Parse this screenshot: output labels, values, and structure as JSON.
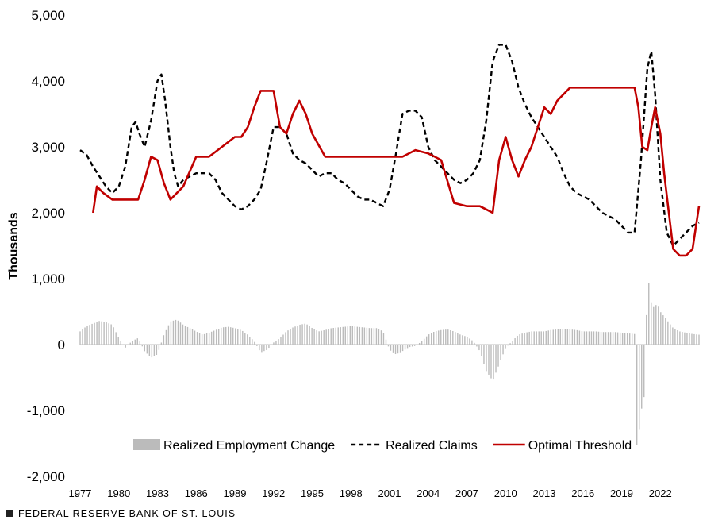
{
  "chart_data": {
    "type": "line",
    "title": "",
    "ylabel": "Thousands",
    "xlabel": "",
    "ylim": [
      -2000,
      5000
    ],
    "yticks": [
      -2000,
      -1000,
      0,
      1000,
      2000,
      3000,
      4000,
      5000
    ],
    "ytick_labels": [
      "-2,000",
      "-1,000",
      "0",
      "1,000",
      "2,000",
      "3,000",
      "4,000",
      "5,000"
    ],
    "xlim": [
      1977,
      2025
    ],
    "xticks": [
      1977,
      1980,
      1983,
      1986,
      1989,
      1992,
      1995,
      1998,
      2001,
      2004,
      2007,
      2010,
      2013,
      2016,
      2019,
      2022
    ],
    "xtick_labels": [
      "1977",
      "1980",
      "1983",
      "1986",
      "1989",
      "1992",
      "1995",
      "1998",
      "2001",
      "2004",
      "2007",
      "2010",
      "2013",
      "2016",
      "2019",
      "2022"
    ],
    "legend_position": "bottom-center",
    "series": [
      {
        "name": "Realized  Employment Change",
        "kind": "bar",
        "color": "#bbbbbb",
        "x": [
          1977.0,
          1977.5,
          1978.0,
          1978.5,
          1979.0,
          1979.5,
          1980.0,
          1980.5,
          1981.0,
          1981.5,
          1982.0,
          1982.5,
          1983.0,
          1983.5,
          1984.0,
          1984.5,
          1985.0,
          1985.5,
          1986.0,
          1986.5,
          1987.0,
          1987.5,
          1988.0,
          1988.5,
          1989.0,
          1989.5,
          1990.0,
          1990.5,
          1991.0,
          1991.5,
          1992.0,
          1992.5,
          1993.0,
          1993.5,
          1994.0,
          1994.5,
          1995.0,
          1995.5,
          1996.0,
          1996.5,
          1997.0,
          1997.5,
          1998.0,
          1998.5,
          1999.0,
          1999.5,
          2000.0,
          2000.5,
          2001.0,
          2001.5,
          2002.0,
          2002.5,
          2003.0,
          2003.5,
          2004.0,
          2004.5,
          2005.0,
          2005.5,
          2006.0,
          2006.5,
          2007.0,
          2007.5,
          2008.0,
          2008.5,
          2009.0,
          2009.5,
          2010.0,
          2010.5,
          2011.0,
          2011.5,
          2012.0,
          2012.5,
          2013.0,
          2013.5,
          2014.0,
          2014.5,
          2015.0,
          2015.5,
          2016.0,
          2016.5,
          2017.0,
          2017.5,
          2018.0,
          2018.5,
          2019.0,
          2019.5,
          2020.0,
          2020.2,
          2020.4,
          2020.6,
          2020.8,
          2021.0,
          2021.2,
          2021.4,
          2021.6,
          2021.8,
          2022.0,
          2022.2,
          2022.4,
          2022.6,
          2022.8,
          2023.0,
          2023.5,
          2024.0,
          2024.5,
          2025.0
        ],
        "values": [
          200,
          280,
          320,
          360,
          340,
          300,
          100,
          -50,
          50,
          100,
          -100,
          -200,
          -150,
          150,
          350,
          380,
          300,
          250,
          200,
          150,
          180,
          220,
          260,
          270,
          250,
          220,
          150,
          50,
          -120,
          -80,
          30,
          100,
          200,
          260,
          300,
          320,
          250,
          200,
          220,
          250,
          260,
          270,
          280,
          270,
          260,
          250,
          250,
          200,
          -80,
          -150,
          -100,
          -40,
          -20,
          50,
          150,
          200,
          220,
          230,
          200,
          150,
          120,
          50,
          -100,
          -400,
          -550,
          -300,
          -50,
          50,
          150,
          180,
          200,
          200,
          200,
          220,
          230,
          240,
          230,
          220,
          200,
          200,
          200,
          190,
          190,
          190,
          180,
          170,
          160,
          -1700,
          -1200,
          -900,
          -750,
          1200,
          700,
          550,
          600,
          600,
          500,
          450,
          400,
          350,
          300,
          250,
          200,
          180,
          160,
          150
        ]
      },
      {
        "name": "Realized Claims",
        "kind": "line",
        "color": "#000000",
        "dash": "dashed",
        "x": [
          1977.0,
          1977.5,
          1978.0,
          1978.5,
          1979.0,
          1979.5,
          1980.0,
          1980.5,
          1981.0,
          1981.3,
          1981.6,
          1982.0,
          1982.5,
          1983.0,
          1983.3,
          1983.6,
          1984.0,
          1984.3,
          1984.6,
          1985.0,
          1986.0,
          1987.0,
          1987.5,
          1988.0,
          1989.0,
          1989.5,
          1990.0,
          1990.5,
          1991.0,
          1991.5,
          1992.0,
          1992.5,
          1993.0,
          1993.5,
          1994.0,
          1994.5,
          1995.0,
          1995.5,
          1996.0,
          1996.5,
          1997.0,
          1997.5,
          1998.0,
          1998.5,
          1999.0,
          1999.5,
          2000.0,
          2000.5,
          2001.0,
          2001.5,
          2002.0,
          2002.5,
          2003.0,
          2003.5,
          2004.0,
          2004.5,
          2005.0,
          2005.5,
          2006.0,
          2006.5,
          2007.0,
          2007.5,
          2008.0,
          2008.5,
          2009.0,
          2009.5,
          2010.0,
          2010.5,
          2011.0,
          2011.5,
          2012.0,
          2012.5,
          2013.0,
          2013.5,
          2014.0,
          2014.5,
          2015.0,
          2015.5,
          2016.0,
          2016.5,
          2017.0,
          2017.5,
          2018.0,
          2018.5,
          2019.0,
          2019.5,
          2020.0,
          2020.5,
          2021.0,
          2021.3,
          2021.6,
          2022.0,
          2022.5,
          2023.0,
          2023.5,
          2024.0,
          2024.5,
          2025.0
        ],
        "values": [
          2950,
          2880,
          2700,
          2550,
          2400,
          2300,
          2400,
          2700,
          3300,
          3380,
          3200,
          3000,
          3400,
          4000,
          4100,
          3700,
          3000,
          2600,
          2400,
          2500,
          2600,
          2600,
          2500,
          2300,
          2100,
          2050,
          2100,
          2200,
          2350,
          2800,
          3300,
          3300,
          3200,
          2900,
          2800,
          2750,
          2650,
          2550,
          2600,
          2600,
          2500,
          2450,
          2350,
          2250,
          2200,
          2200,
          2150,
          2100,
          2350,
          2900,
          3500,
          3550,
          3550,
          3450,
          3000,
          2800,
          2700,
          2600,
          2500,
          2450,
          2500,
          2600,
          2800,
          3400,
          4300,
          4550,
          4550,
          4300,
          3900,
          3650,
          3450,
          3300,
          3150,
          3000,
          2850,
          2600,
          2400,
          2300,
          2250,
          2200,
          2100,
          2000,
          1950,
          1900,
          1800,
          1700,
          1700,
          2800,
          4200,
          4450,
          3800,
          2500,
          1700,
          1500,
          1600,
          1700,
          1800,
          1850
        ]
      },
      {
        "name": "Optimal Threshold",
        "kind": "line",
        "color": "#c00000",
        "dash": "solid",
        "x": [
          1978.0,
          1978.3,
          1978.8,
          1979.5,
          1980.5,
          1981.5,
          1982.0,
          1982.5,
          1983.0,
          1983.5,
          1984.0,
          1985.0,
          1986.0,
          1987.0,
          1988.0,
          1989.0,
          1989.5,
          1990.0,
          1990.5,
          1991.0,
          1991.5,
          1992.0,
          1992.5,
          1993.0,
          1993.5,
          1994.0,
          1994.5,
          1995.0,
          1996.0,
          1997.0,
          1998.0,
          1999.0,
          2000.0,
          2001.0,
          2002.0,
          2003.0,
          2004.0,
          2004.5,
          2005.0,
          2006.0,
          2007.0,
          2008.0,
          2008.5,
          2009.0,
          2009.5,
          2010.0,
          2010.5,
          2011.0,
          2011.5,
          2012.0,
          2012.5,
          2013.0,
          2013.5,
          2014.0,
          2015.0,
          2016.0,
          2017.0,
          2018.0,
          2019.0,
          2019.5,
          2019.8,
          2020.0,
          2020.3,
          2020.6,
          2021.0,
          2021.3,
          2021.6,
          2022.0,
          2022.3,
          2022.6,
          2023.0,
          2023.5,
          2024.0,
          2024.5,
          2025.0
        ],
        "values": [
          2000,
          2400,
          2300,
          2200,
          2200,
          2200,
          2500,
          2850,
          2800,
          2450,
          2200,
          2400,
          2850,
          2850,
          3000,
          3150,
          3150,
          3300,
          3600,
          3850,
          3850,
          3850,
          3300,
          3200,
          3500,
          3700,
          3500,
          3200,
          2850,
          2850,
          2850,
          2850,
          2850,
          2850,
          2850,
          2950,
          2900,
          2850,
          2800,
          2150,
          2100,
          2100,
          2050,
          2000,
          2800,
          3150,
          2800,
          2550,
          2800,
          3000,
          3300,
          3600,
          3500,
          3700,
          3900,
          3900,
          3900,
          3900,
          3900,
          3900,
          3900,
          3900,
          3600,
          3000,
          2950,
          3300,
          3600,
          3200,
          2600,
          2100,
          1450,
          1350,
          1350,
          1450,
          2100
        ]
      }
    ]
  },
  "source_label": "FEDERAL RESERVE BANK OF ST. LOUIS"
}
